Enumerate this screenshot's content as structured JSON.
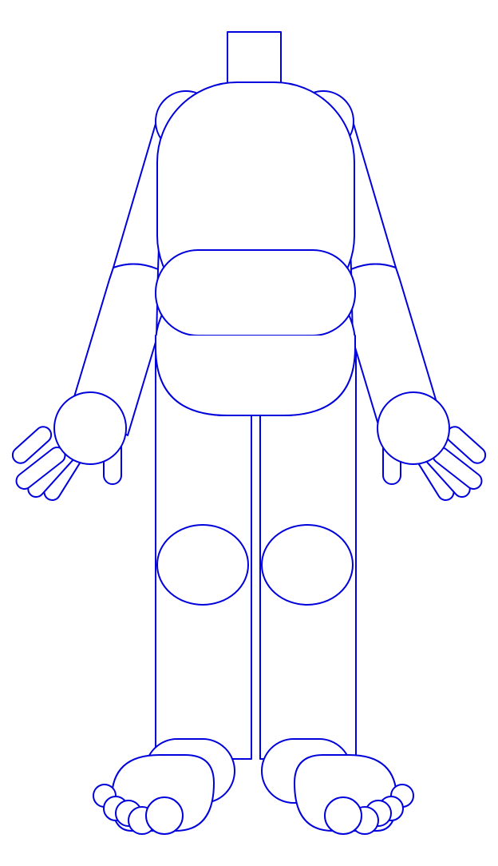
{
  "figure": {
    "stroke_color": "#0000dd",
    "background": "#ffffff",
    "parts": [
      "neck",
      "torso",
      "shoulders",
      "arms",
      "hands",
      "waist",
      "legs",
      "knees",
      "feet",
      "toes"
    ]
  }
}
